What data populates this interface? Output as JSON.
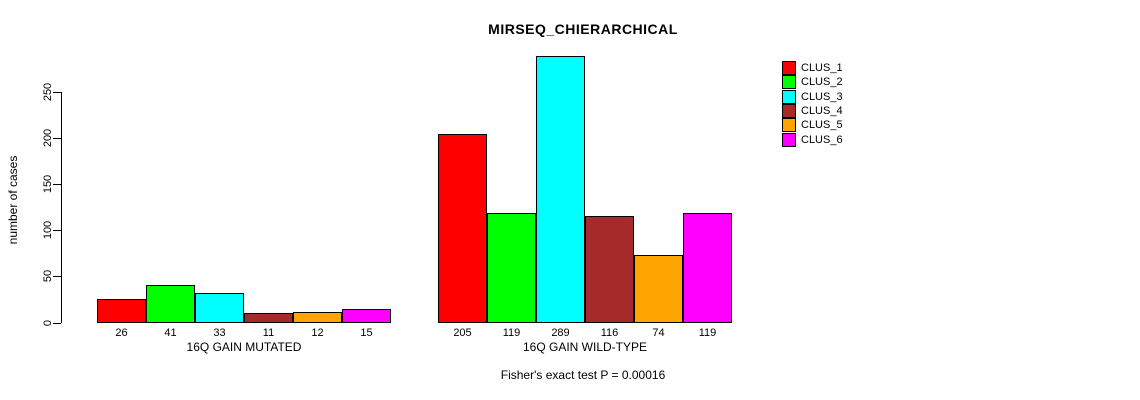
{
  "chart_data": {
    "type": "bar",
    "title": "MIRSEQ_CHIERARCHICAL",
    "ylabel": "number of cases",
    "xlabel": "",
    "yticks": [
      0,
      50,
      100,
      150,
      200,
      250
    ],
    "ylim": [
      0,
      290
    ],
    "grid": false,
    "legend_position": "top-right",
    "bar_value_labels": true,
    "categories": [
      "16Q GAIN MUTATED",
      "16Q GAIN WILD-TYPE"
    ],
    "series": [
      {
        "name": "CLUS_1",
        "color": "#ff0000",
        "values": [
          26,
          205
        ]
      },
      {
        "name": "CLUS_2",
        "color": "#00ff00",
        "values": [
          41,
          119
        ]
      },
      {
        "name": "CLUS_3",
        "color": "#00ffff",
        "values": [
          33,
          289
        ]
      },
      {
        "name": "CLUS_4",
        "color": "#a52a2a",
        "values": [
          11,
          116
        ]
      },
      {
        "name": "CLUS_5",
        "color": "#ffa500",
        "values": [
          12,
          74
        ]
      },
      {
        "name": "CLUS_6",
        "color": "#ff00ff",
        "values": [
          15,
          119
        ]
      }
    ],
    "annotation": "Fisher's exact test P = 0.00016"
  }
}
